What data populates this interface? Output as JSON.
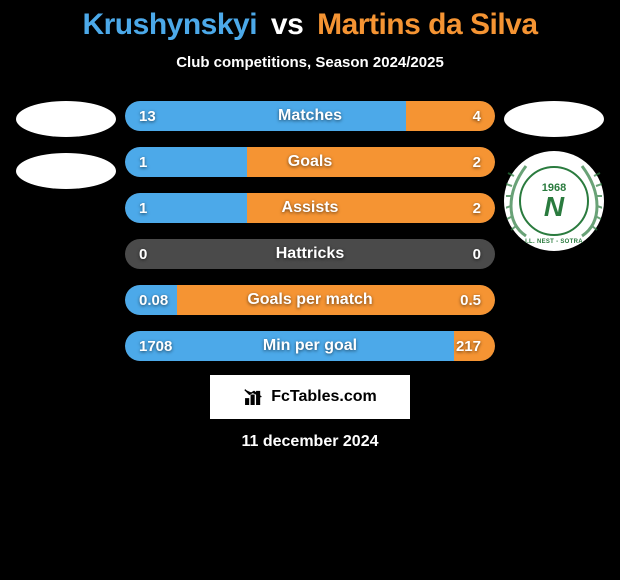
{
  "title": {
    "player1": "Krushynskyi",
    "vs": "vs",
    "player2": "Martins da Silva"
  },
  "subtitle": "Club competitions, Season 2024/2025",
  "colors": {
    "player1": "#4ca9e9",
    "player2": "#f59433",
    "bar_bg": "#4a4a4a",
    "page_bg": "#000000",
    "text": "#ffffff",
    "badge_green": "#2a7b3e"
  },
  "bars": [
    {
      "label": "Matches",
      "left_val": "13",
      "right_val": "4",
      "left_pct": 76,
      "right_pct": 24
    },
    {
      "label": "Goals",
      "left_val": "1",
      "right_val": "2",
      "left_pct": 33,
      "right_pct": 67
    },
    {
      "label": "Assists",
      "left_val": "1",
      "right_val": "2",
      "left_pct": 33,
      "right_pct": 67
    },
    {
      "label": "Hattricks",
      "left_val": "0",
      "right_val": "0",
      "left_pct": 0,
      "right_pct": 0
    },
    {
      "label": "Goals per match",
      "left_val": "0.08",
      "right_val": "0.5",
      "left_pct": 14,
      "right_pct": 86
    },
    {
      "label": "Min per goal",
      "left_val": "1708",
      "right_val": "217",
      "left_pct": 89,
      "right_pct": 11
    }
  ],
  "badge": {
    "year": "1968",
    "letter": "N",
    "club": "I.L. NEST - SOTRA"
  },
  "footer": {
    "brand": "FcTables.com",
    "date": "11 december 2024"
  }
}
